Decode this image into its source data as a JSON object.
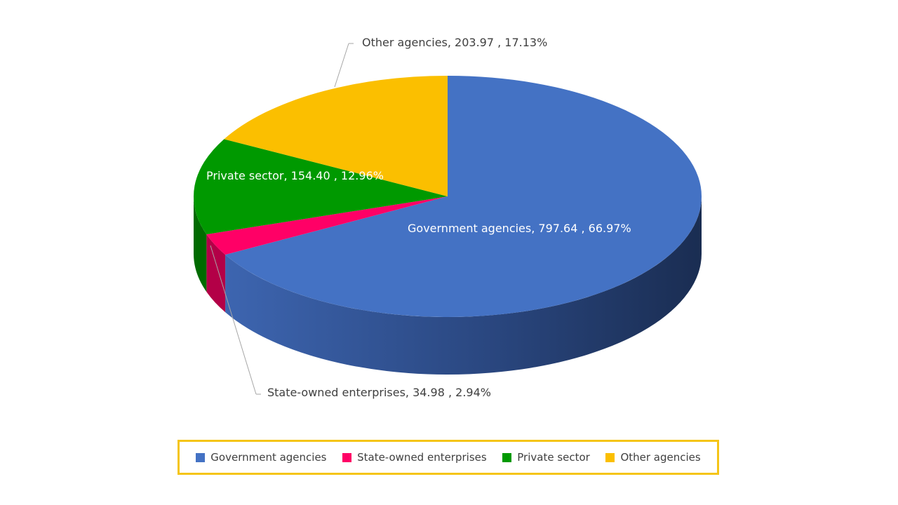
{
  "chart_data": {
    "type": "pie",
    "title": "",
    "slices": [
      {
        "name": "Government agencies",
        "value": 797.64,
        "percent": "66.97%",
        "color": "#4472c4"
      },
      {
        "name": "State-owned enterprises",
        "value": 34.98,
        "percent": "2.94%",
        "color": "#ff0066"
      },
      {
        "name": "Private sector",
        "value": 154.4,
        "percent": "12.96%",
        "color": "#009900"
      },
      {
        "name": "Other agencies",
        "value": 203.97,
        "percent": "17.13%",
        "color": "#fbbf00"
      }
    ],
    "labels": {
      "government": "Government agencies,  797.64 , 66.97%",
      "state": "State-owned enterprises,  34.98 , 2.94%",
      "private": "Private sector,  154.40 , 12.96%",
      "other": "Other agencies,  203.97 , 17.13%"
    },
    "legend": {
      "placement": "bottom",
      "border_color": "#f5c518",
      "items": [
        "Government agencies",
        "State-owned enterprises",
        "Private sector",
        "Other agencies"
      ]
    }
  }
}
